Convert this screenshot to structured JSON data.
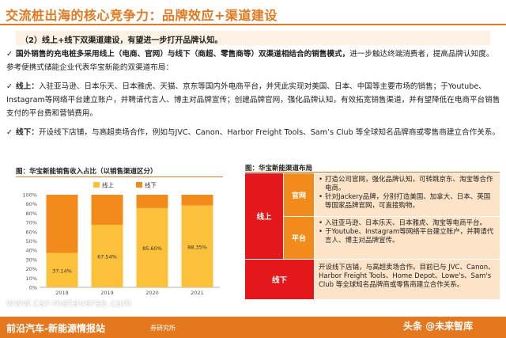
{
  "title": "交流桩出海的核心竞争力：品牌效应+渠道建设",
  "subhead": "（2）线上+线下双渠道建设，有望进一步打开品牌认知。",
  "paragraphs": [
    {
      "check": "✓",
      "bold": "国外销售的充电桩多采用线上（电商、官网）与线下（商超、零售商等）双渠道相结合的销售模式，",
      "text": "进一步触达终端消费者，提高品牌认知度。参考便携式储能企业代表华宝新能的双渠道布局："
    },
    {
      "check": "✓",
      "bold": "线上：",
      "text": "入驻亚马逊、日本乐天、日本雅虎、天猫、京东等国内外电商平台，并凭此实现对美国、日本、中国等主要市场的销售；于Youtube、Instagram等网络平台建立账户，并聘请代言人、博主对品牌宣传；创建品牌官网，强化品牌认知，有效拓宽销售渠道，并有望降低在电商平台销售支付的平台费和营销费用。"
    },
    {
      "check": "✓",
      "bold": "线下：",
      "text": "开设线下店铺，与高超卖场合作，例如与JVC、Canon、Harbor Freight Tools、Sam’s Club 等全球知名品牌商或零售商建立合作关系。"
    }
  ],
  "left_caption": "图：华宝新能销售收入占比（以销售渠道区分）",
  "right_caption": "图：华宝新能渠道布局",
  "chart_data": {
    "type": "bar",
    "stacked": true,
    "categories": [
      "2018",
      "2019",
      "2020",
      "2021"
    ],
    "series": [
      {
        "name": "线上",
        "values": [
          37.14,
          67.54,
          85.6,
          88.35
        ],
        "labels": [
          "37.14%",
          "67.54%",
          "85.60%",
          "88.35%"
        ],
        "color": "#fbc13b"
      },
      {
        "name": "线下",
        "values": [
          62.86,
          32.46,
          14.4,
          11.65
        ],
        "color": "#f28b1b"
      }
    ],
    "yticks": [
      "0%",
      "10%",
      "20%",
      "30%",
      "40%",
      "50%",
      "60%",
      "70%",
      "80%",
      "90%",
      "100%"
    ],
    "ylim": [
      0,
      100
    ],
    "legend": "top"
  },
  "table": {
    "online_label": "线上",
    "offline_label": "线下",
    "website_label": "官网",
    "platform_label": "平台",
    "website_items": [
      "打造公司官网，强化品牌认知，可转跳京东、淘宝等合作电商。",
      "针对Jackery品牌，分别打造美国、加拿大、日本、英国等国家品牌官网，可直接购物。"
    ],
    "platform_items": [
      "入驻亚马逊、日本乐天、日本雅虎、淘宝等电商平台。",
      "于Youtube、Instagram等网络平台建立账户，并聘请代言人、博主对品牌宣传。"
    ],
    "offline_text": "开设线下店铺，与高超卖场合作。目前已与 JVC、Canon、Harbor Freight Tools、Home Depot、Lowe's、Sam's Club 等全球知名品牌商或零售商建立合作关系。"
  },
  "footer": {
    "text": "前沿汽车-新能源情报站",
    "source": "券研究所",
    "watermark": "www.car-metaverse.com",
    "toutiao": "头条 @未来智库"
  }
}
